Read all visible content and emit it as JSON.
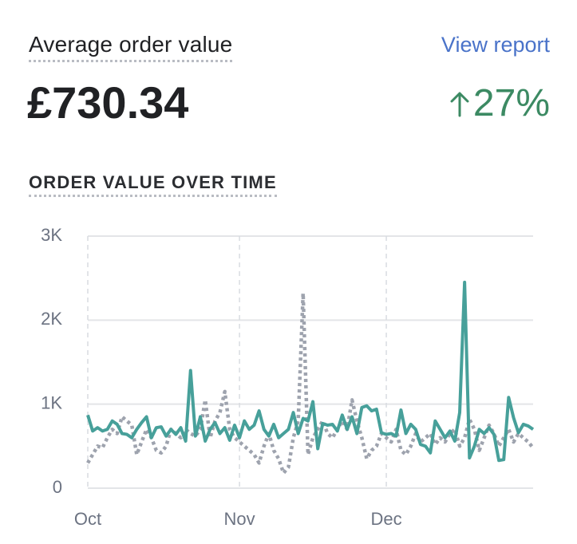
{
  "header": {
    "title": "Average order value",
    "link": "View report",
    "value": "£730.34",
    "change": "27%"
  },
  "chart_data": {
    "type": "line",
    "title": "ORDER VALUE OVER TIME",
    "categories": [
      "Oct",
      null,
      null,
      null,
      null,
      null,
      null,
      null,
      null,
      null,
      null,
      null,
      null,
      null,
      null,
      null,
      null,
      null,
      null,
      null,
      null,
      null,
      null,
      null,
      null,
      null,
      null,
      null,
      null,
      null,
      null,
      "Nov",
      null,
      null,
      null,
      null,
      null,
      null,
      null,
      null,
      null,
      null,
      null,
      null,
      null,
      null,
      null,
      null,
      null,
      null,
      null,
      null,
      null,
      null,
      null,
      null,
      null,
      null,
      null,
      null,
      null,
      "Dec",
      null,
      null,
      null,
      null,
      null,
      null,
      null,
      null,
      null,
      null,
      null,
      null,
      null,
      null,
      null,
      null,
      null,
      null,
      null,
      null,
      null,
      null,
      null,
      null,
      null,
      null,
      null,
      null,
      null,
      null
    ],
    "series": [
      {
        "color": "#47a09a",
        "style": "solid",
        "values": [
          870,
          680,
          720,
          680,
          700,
          800,
          760,
          650,
          640,
          600,
          700,
          780,
          850,
          600,
          720,
          730,
          620,
          700,
          640,
          720,
          560,
          1400,
          620,
          850,
          560,
          700,
          780,
          650,
          720,
          570,
          750,
          600,
          800,
          700,
          750,
          920,
          700,
          620,
          760,
          600,
          650,
          700,
          900,
          650,
          830,
          800,
          1030,
          470,
          770,
          750,
          760,
          680,
          870,
          700,
          850,
          650,
          960,
          980,
          920,
          940,
          660,
          640,
          650,
          620,
          930,
          650,
          760,
          700,
          520,
          500,
          420,
          800,
          700,
          600,
          680,
          560,
          900,
          2450,
          360,
          500,
          700,
          650,
          720,
          640,
          330,
          340,
          1080,
          840,
          660,
          760,
          740,
          700
        ]
      },
      {
        "color": "#9ea3ae",
        "style": "dotted",
        "values": [
          300,
          400,
          500,
          480,
          600,
          700,
          650,
          850,
          800,
          750,
          400,
          550,
          700,
          600,
          450,
          420,
          500,
          700,
          650,
          600,
          700,
          650,
          620,
          700,
          1050,
          600,
          800,
          900,
          1150,
          700,
          600,
          550,
          500,
          450,
          400,
          300,
          500,
          650,
          450,
          350,
          180,
          250,
          600,
          800,
          2320,
          400,
          600,
          700,
          800,
          650,
          600,
          700,
          800,
          700,
          1050,
          800,
          600,
          350,
          450,
          500,
          650,
          600,
          550,
          700,
          450,
          400,
          500,
          650,
          550,
          600,
          650,
          520,
          600,
          550,
          650,
          700,
          500,
          600,
          820,
          700,
          450,
          600,
          750,
          650,
          500,
          600,
          700,
          550,
          650,
          600,
          550,
          480
        ]
      }
    ],
    "ylim": [
      0,
      3000
    ],
    "yticks": [
      0,
      {
        "value": 1000,
        "label": "1K"
      },
      {
        "value": 2000,
        "label": "2K"
      },
      {
        "value": 3000,
        "label": "3K"
      }
    ],
    "grid": true
  }
}
